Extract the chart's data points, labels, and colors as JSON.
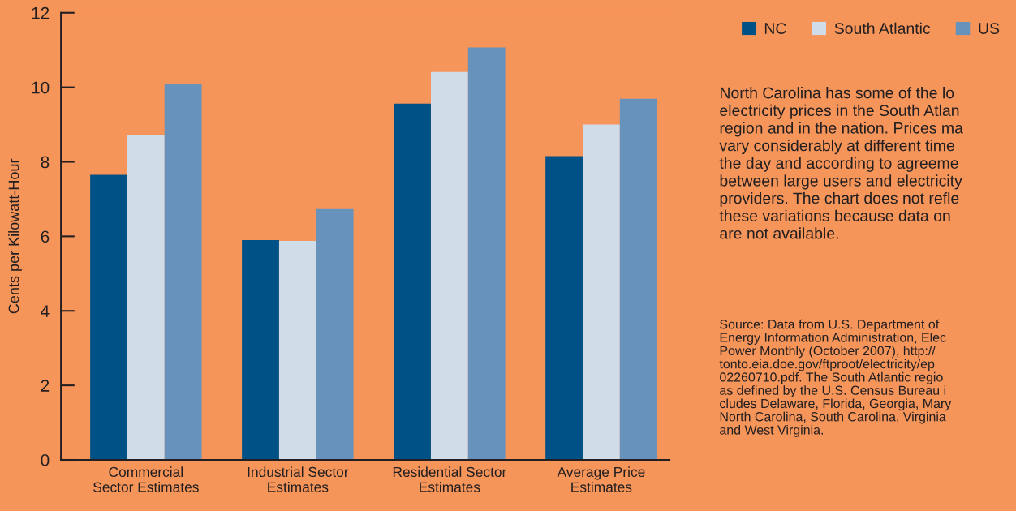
{
  "chart_data": {
    "type": "bar",
    "ylabel": "Cents per Kilowatt-Hour",
    "categories": [
      "Commercial\nSector Estimates",
      "Industrial Sector\nEstimates",
      "Residential Sector\nEstimates",
      "Average Price\nEstimates"
    ],
    "series": [
      {
        "name": "NC",
        "color": "#005185",
        "values": [
          7.65,
          5.9,
          9.56,
          8.15
        ]
      },
      {
        "name": "South Atlantic",
        "color": "#d1dce9",
        "values": [
          8.71,
          5.88,
          10.41,
          9.0
        ]
      },
      {
        "name": "US",
        "color": "#6792bb",
        "values": [
          10.1,
          6.73,
          11.07,
          9.69
        ]
      }
    ],
    "ylim": [
      0,
      12
    ],
    "yticks": [
      0,
      2,
      4,
      6,
      8,
      10,
      12
    ],
    "grid": false,
    "legend": "top right",
    "annotations": [
      "North Carolina has some of the lo\nelectricity prices in the South Atlan\nregion and in the nation. Prices ma\nvary considerably at different time\nthe day and according to agreeme\nbetween large users and electricity\nproviders. The chart does not refle\nthese variations because data on\nare not available.",
      "Source: Data from U.S. Department of\nEnergy Information Administration, Elec\nPower Monthly (October 2007), http://\ntonto.eia.doe.gov/ftproot/electricity/ep\n02260710.pdf. The South Atlantic regio\nas defined by the U.S. Census Bureau i\ncludes Delaware, Florida, Georgia, Mary\nNorth Carolina, South Carolina, Virginia\nand West Virginia."
    ]
  }
}
